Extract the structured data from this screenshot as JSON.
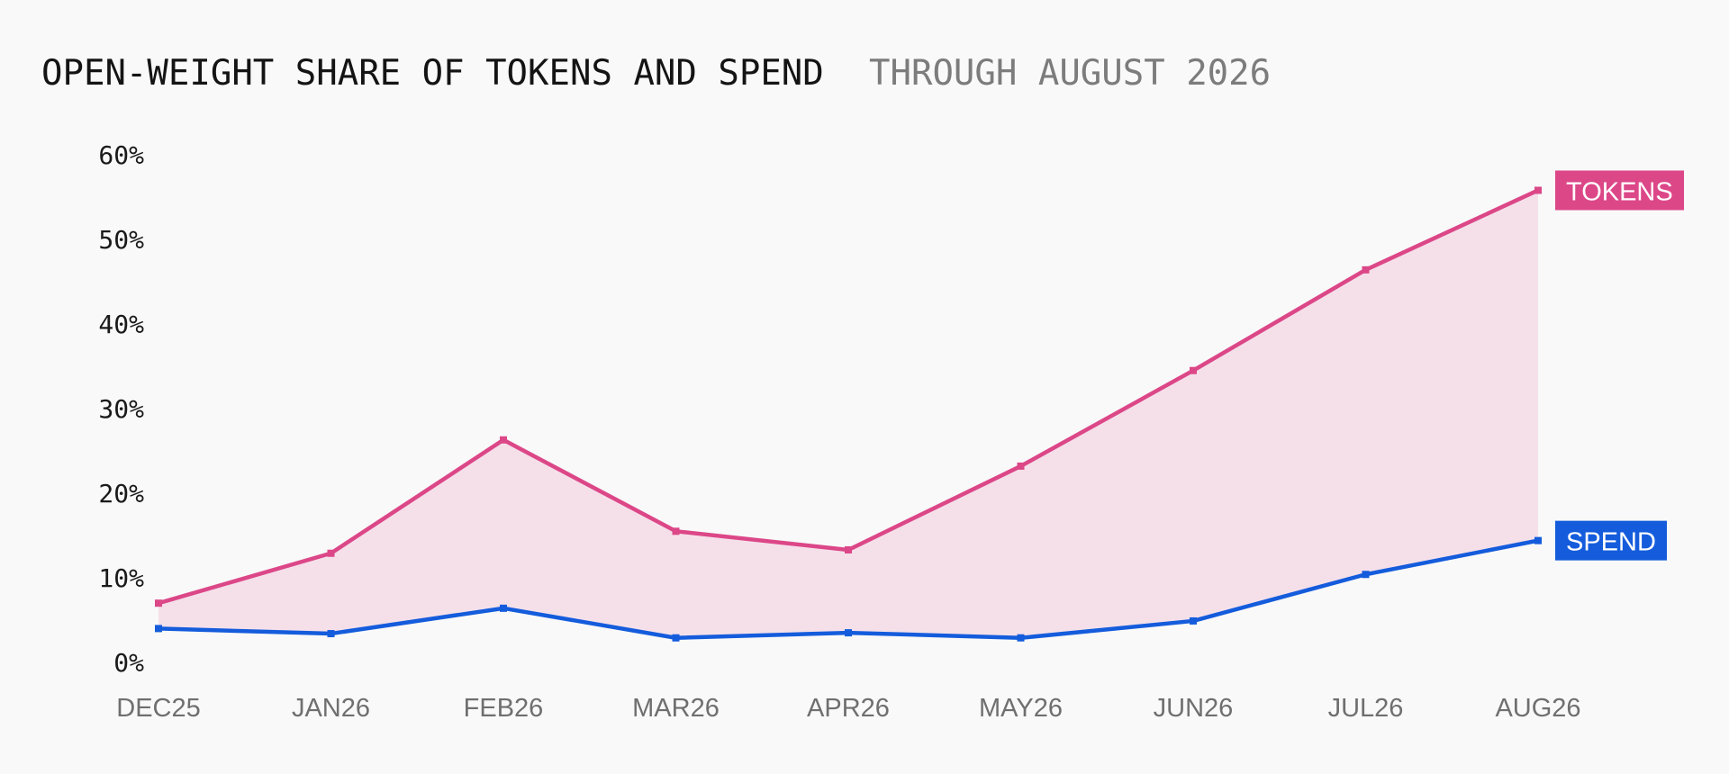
{
  "chart_data": {
    "type": "line",
    "title": "OPEN-WEIGHT SHARE OF TOKENS AND SPEND",
    "subtitle": "THROUGH AUGUST 2026",
    "categories": [
      "DEC25",
      "JAN26",
      "FEB26",
      "MAR26",
      "APR26",
      "MAY26",
      "JUN26",
      "JUL26",
      "AUG26"
    ],
    "ylim": [
      0,
      60
    ],
    "yticks": [
      {
        "value": 0,
        "label": "0%"
      },
      {
        "value": 10,
        "label": "10%"
      },
      {
        "value": 20,
        "label": "20%"
      },
      {
        "value": 30,
        "label": "30%"
      },
      {
        "value": 40,
        "label": "40%"
      },
      {
        "value": 50,
        "label": "50%"
      },
      {
        "value": 60,
        "label": "60%"
      }
    ],
    "grid": false,
    "legend": "end-of-line labels",
    "fill_between": {
      "from": "TOKENS",
      "to": "SPEND",
      "color": "#f5e0ea"
    },
    "series": [
      {
        "name": "TOKENS",
        "color": "#dc4788",
        "values": [
          7.0,
          12.9,
          26.3,
          15.5,
          13.3,
          23.2,
          34.5,
          46.4,
          55.8
        ]
      },
      {
        "name": "SPEND",
        "color": "#145cdc",
        "values": [
          4.0,
          3.4,
          6.4,
          2.9,
          3.5,
          2.9,
          4.9,
          10.4,
          14.4
        ]
      }
    ]
  }
}
